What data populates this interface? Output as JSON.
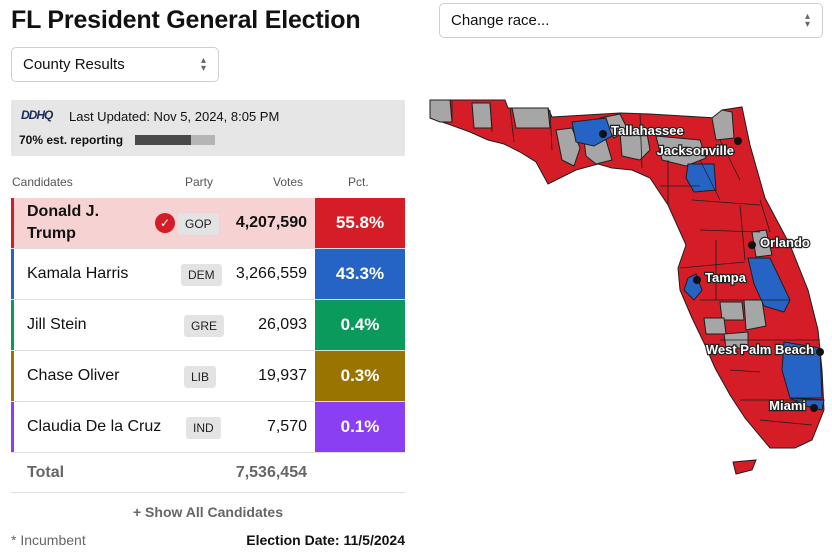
{
  "title": "FL President General Election",
  "change_race": {
    "label": "Change race..."
  },
  "results_view": {
    "label": "County Results"
  },
  "status": {
    "logo": "DDHQ",
    "last_updated": "Last Updated: Nov 5, 2024, 8:05 PM",
    "reporting_label": "70% est. reporting",
    "reporting_fraction": 0.7
  },
  "table": {
    "headers": {
      "candidates": "Candidates",
      "party": "Party",
      "votes": "Votes",
      "pct": "Pct."
    },
    "rows": [
      {
        "name": "Donald J. Trump",
        "party": "GOP",
        "votes": "4,207,590",
        "pct": "55.8%",
        "color": "#d41d26",
        "winner": true
      },
      {
        "name": "Kamala Harris",
        "party": "DEM",
        "votes": "3,266,559",
        "pct": "43.3%",
        "color": "#2563c4",
        "winner": false
      },
      {
        "name": "Jill Stein",
        "party": "GRE",
        "votes": "26,093",
        "pct": "0.4%",
        "color": "#0a9a5c",
        "winner": false
      },
      {
        "name": "Chase Oliver",
        "party": "LIB",
        "votes": "19,937",
        "pct": "0.3%",
        "color": "#9a7400",
        "winner": false
      },
      {
        "name": "Claudia De la Cruz",
        "party": "IND",
        "votes": "7,570",
        "pct": "0.1%",
        "color": "#8a3ff2",
        "winner": false
      }
    ],
    "total_label": "Total",
    "total_votes": "7,536,454"
  },
  "show_all": "+ Show All Candidates",
  "footnote": "* Incumbent",
  "election_date": "Election Date: 11/5/2024",
  "map": {
    "cities": [
      "Tallahassee",
      "Jacksonville",
      "Orlando",
      "Tampa",
      "West Palm Beach",
      "Miami"
    ],
    "colors": {
      "gop": "#d41d26",
      "dem": "#2563c4",
      "none": "#a6a6a6",
      "border": "#1e1e1e"
    }
  },
  "icons": {
    "select_chevron": "chevron-up-down-icon",
    "winner": "checkmark-icon"
  }
}
